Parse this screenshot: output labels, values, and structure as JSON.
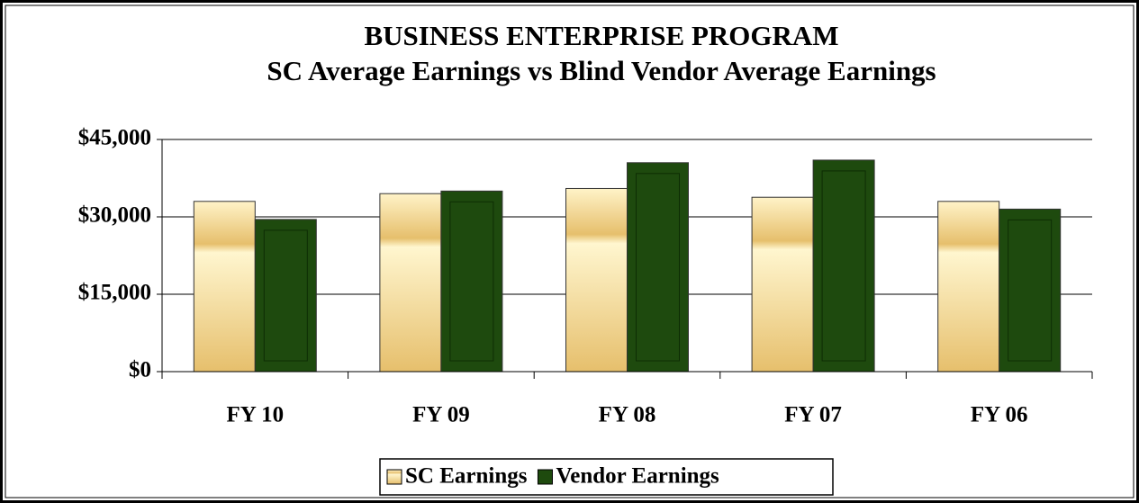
{
  "chart_data": {
    "type": "bar",
    "title": "BUSINESS ENTERPRISE PROGRAM",
    "subtitle": "SC Average Earnings vs Blind Vendor Average Earnings",
    "categories": [
      "FY 10",
      "FY 09",
      "FY 08",
      "FY 07",
      "FY 06"
    ],
    "series": [
      {
        "name": "SC Earnings",
        "color": "#e6bf6c",
        "values": [
          33000,
          34500,
          35500,
          33800,
          33000
        ]
      },
      {
        "name": "Vendor Earnings",
        "color": "#1e4a0e",
        "values": [
          29500,
          35000,
          40500,
          41000,
          31500
        ]
      }
    ],
    "ylim": [
      0,
      45000
    ],
    "yticks": [
      {
        "value": 0,
        "label": "$0"
      },
      {
        "value": 15000,
        "label": "$15,000"
      },
      {
        "value": 30000,
        "label": "$30,000"
      },
      {
        "value": 45000,
        "label": "$45,000"
      }
    ],
    "grid": true,
    "legend": "bottom"
  }
}
